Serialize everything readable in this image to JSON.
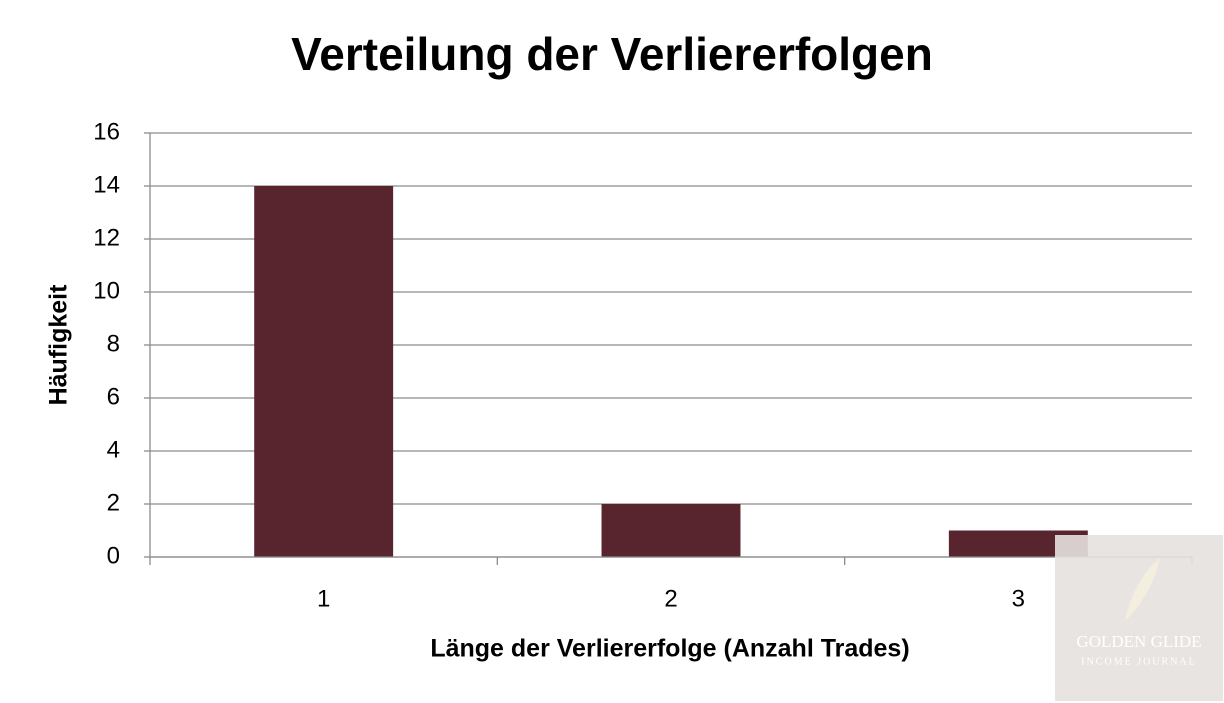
{
  "chart_data": {
    "type": "bar",
    "title": "Verteilung der Verliererfolgen",
    "x_label": "Länge der Verliererfolge (Anzahl Trades)",
    "y_label": "Häufigkeit",
    "categories": [
      "1",
      "2",
      "3"
    ],
    "values": [
      14,
      2,
      1
    ],
    "color": "#58252f",
    "ylim": [
      0,
      16
    ],
    "yticks": [
      0,
      2,
      4,
      6,
      8,
      10,
      12,
      14,
      16
    ],
    "grid": true
  },
  "watermark": {
    "title": "GOLDEN GLIDE",
    "subtitle": "INCOME JOURNAL"
  }
}
